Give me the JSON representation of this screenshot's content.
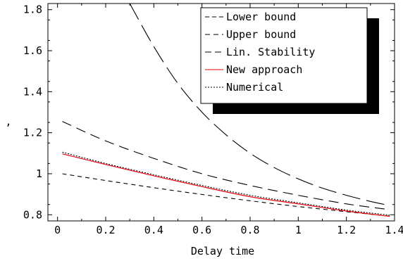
{
  "chart_data": {
    "type": "line",
    "title": "",
    "xlabel": "Delay time",
    "ylabel": ",",
    "xlim": [
      -0.04,
      1.4
    ],
    "ylim": [
      0.77,
      1.83
    ],
    "x_ticks": [
      0,
      0.2,
      0.4,
      0.6,
      0.8,
      1,
      1.2,
      1.4
    ],
    "x_tick_labels": [
      "0",
      "0.2",
      "0.4",
      "0.6",
      "0.8",
      "1",
      "1.2",
      "1.4"
    ],
    "y_ticks": [
      0.8,
      1.0,
      1.2,
      1.4,
      1.6,
      1.8
    ],
    "y_tick_labels": [
      "0.8",
      "1",
      "1.2",
      "1.4",
      "1.6",
      "1.8"
    ],
    "grid": false,
    "legend_position": "top-right",
    "series": [
      {
        "name": "Lower bound",
        "color": "#000000",
        "dash": "short-dash",
        "x": [
          0.02,
          0.2,
          0.4,
          0.6,
          0.8,
          1.0,
          1.2,
          1.38
        ],
        "y": [
          1.0,
          0.967,
          0.932,
          0.899,
          0.868,
          0.84,
          0.815,
          0.793
        ]
      },
      {
        "name": "Upper bound",
        "color": "#000000",
        "dash": "medium-dash",
        "x": [
          0.02,
          0.2,
          0.4,
          0.6,
          0.8,
          1.0,
          1.2,
          1.38
        ],
        "y": [
          1.255,
          1.16,
          1.075,
          1.0,
          0.943,
          0.895,
          0.853,
          0.825
        ]
      },
      {
        "name": "Lin. Stability",
        "color": "#000000",
        "dash": "long-dash",
        "x": [
          0.3,
          0.4,
          0.5,
          0.6,
          0.7,
          0.8,
          0.9,
          1.0,
          1.1,
          1.2,
          1.3,
          1.38
        ],
        "y": [
          1.83,
          1.62,
          1.44,
          1.3,
          1.19,
          1.1,
          1.03,
          0.975,
          0.93,
          0.895,
          0.865,
          0.845
        ]
      },
      {
        "name": "New approach",
        "color": "#e8000b",
        "dash": "solid",
        "x": [
          0.02,
          0.2,
          0.4,
          0.6,
          0.8,
          1.0,
          1.2,
          1.38
        ],
        "y": [
          1.097,
          1.045,
          0.99,
          0.937,
          0.888,
          0.853,
          0.818,
          0.792
        ]
      },
      {
        "name": "Numerical",
        "color": "#000000",
        "dash": "dotted",
        "x": [
          0.02,
          0.2,
          0.4,
          0.6,
          0.8,
          1.0,
          1.2,
          1.38
        ],
        "y": [
          1.105,
          1.05,
          0.995,
          0.943,
          0.895,
          0.858,
          0.823,
          0.798
        ]
      }
    ]
  }
}
